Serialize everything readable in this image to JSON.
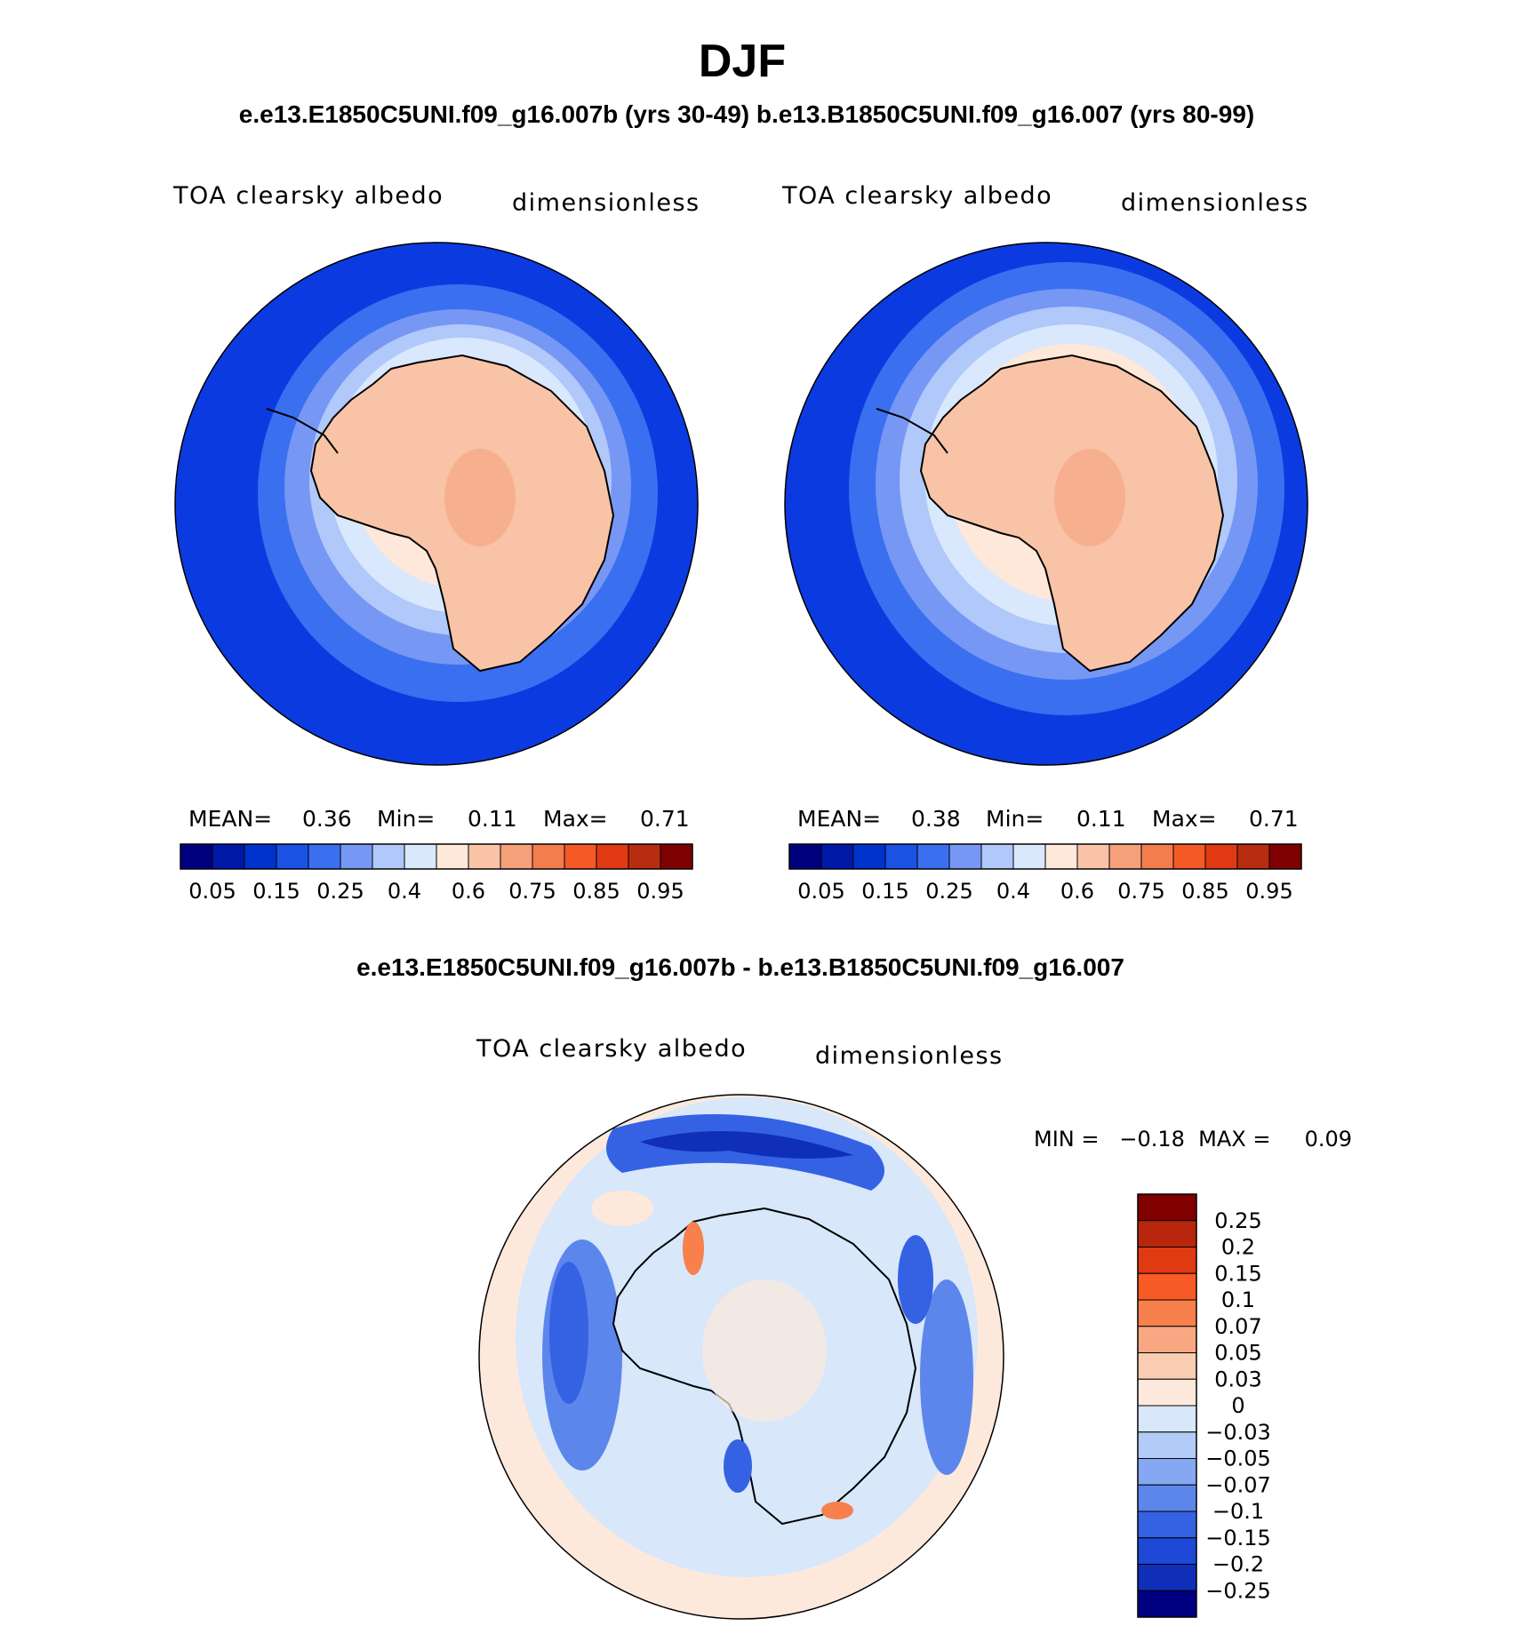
{
  "chart_data": {
    "type": "polar-contour-map",
    "title": "DJF",
    "subtitle": "e.e13.E1850C5UNI.f09_g16.007b (yrs 30-49)  b.e13.B1850C5UNI.f09_g16.007 (yrs 80-99)",
    "abs_colors": [
      "#00007f",
      "#0018a8",
      "#0033cc",
      "#1a52e6",
      "#3a6ff0",
      "#7797f5",
      "#b0c8fa",
      "#d9e8fc",
      "#fde8da",
      "#f9c3a8",
      "#f6a07a",
      "#f47d4d",
      "#f45925",
      "#e13a12",
      "#b82c12",
      "#7f0000"
    ],
    "abs_ticks": [
      "0.05",
      "0.15",
      "0.25",
      "0.4",
      "0.6",
      "0.75",
      "0.85",
      "0.95"
    ],
    "panels": [
      {
        "case": "e.e13.E1850C5UNI.f09_g16.007b (yrs 30-49)",
        "variable": "TOA clearsky albedo",
        "units": "dimensionless",
        "stats": {
          "mean_label": "MEAN=",
          "mean": "0.36",
          "min_label": "Min=",
          "min": "0.11",
          "max_label": "Max=",
          "max": "0.71"
        }
      },
      {
        "case": "b.e13.B1850C5UNI.f09_g16.007 (yrs 80-99)",
        "variable": "TOA clearsky albedo",
        "units": "dimensionless",
        "stats": {
          "mean_label": "MEAN=",
          "mean": "0.38",
          "min_label": "Min=",
          "min": "0.11",
          "max_label": "Max=",
          "max": "0.71"
        }
      }
    ],
    "diff_panel": {
      "title": "e.e13.E1850C5UNI.f09_g16.007b - b.e13.B1850C5UNI.f09_g16.007",
      "variable": "TOA clearsky albedo",
      "units": "dimensionless",
      "stats_line": "MIN =   −0.18  MAX =     0.09",
      "colors_top_to_bottom": [
        "#800000",
        "#b8260e",
        "#e03a12",
        "#f75a25",
        "#f7804d",
        "#f7a882",
        "#f8cdb2",
        "#fde9dc",
        "#d8e7fa",
        "#b3cbf7",
        "#86a7f2",
        "#5c86ec",
        "#3462e3",
        "#1e48d6",
        "#0f2fb8",
        "#000080"
      ],
      "labels": [
        "0.25",
        "0.2",
        "0.15",
        "0.1",
        "0.07",
        "0.05",
        "0.03",
        "0",
        "−0.03",
        "−0.05",
        "−0.07",
        "−0.1",
        "−0.15",
        "−0.2",
        "−0.25"
      ]
    }
  }
}
